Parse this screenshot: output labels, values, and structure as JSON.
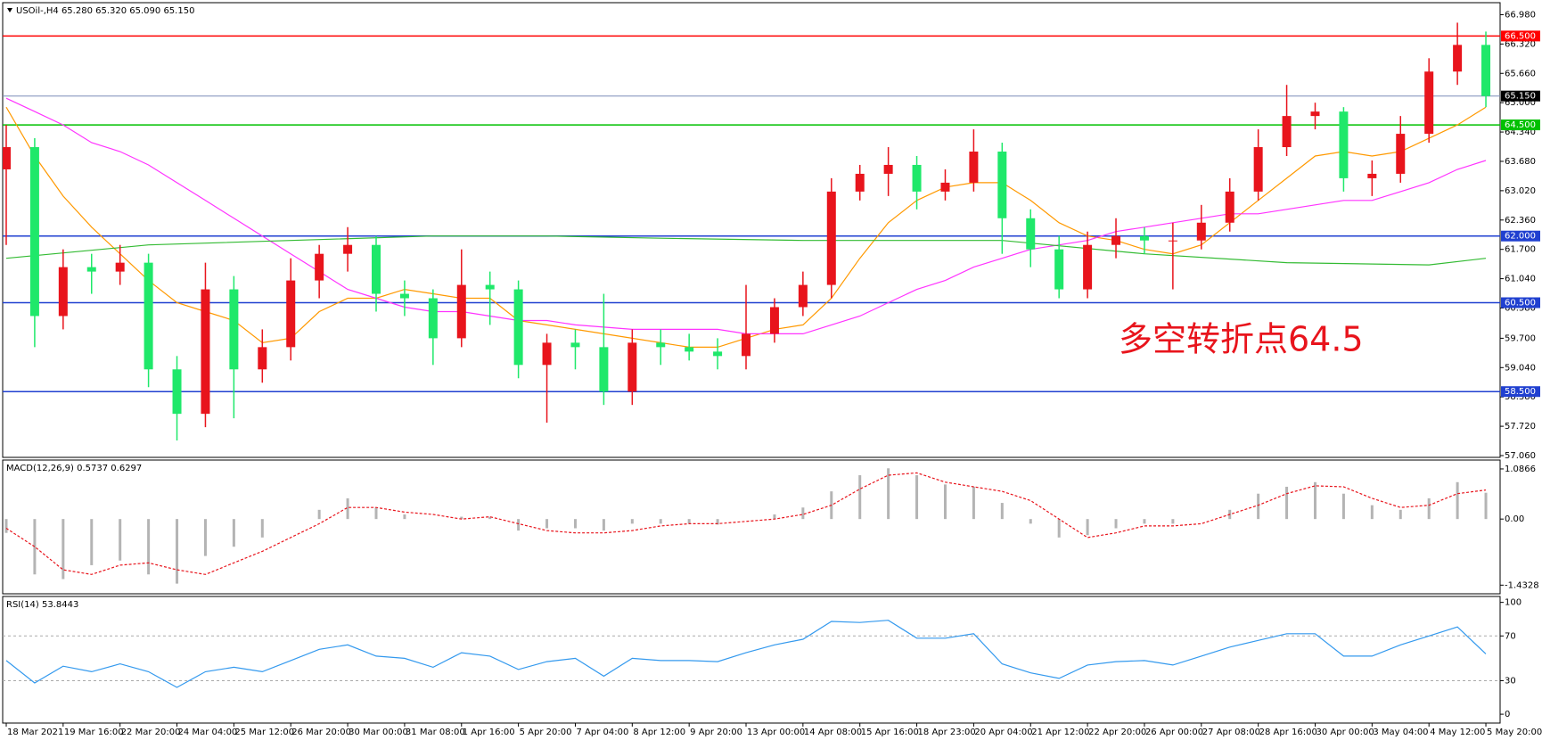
{
  "chart_data": [
    {
      "type": "candlestick",
      "title": "USOil-,H4  65.280 65.320 65.090 65.150",
      "annotation": "多空转折点64.5",
      "up_color": "#e8141c",
      "down_color": "#1fe86a",
      "xlim": [
        -0.5,
        210
      ],
      "x": [
        0,
        4,
        8,
        12,
        16,
        20,
        24,
        28,
        32,
        36,
        40,
        44,
        48,
        52,
        56,
        60,
        64,
        68,
        72,
        76,
        80,
        84,
        88,
        92,
        96,
        100,
        104,
        108,
        112,
        116,
        120,
        124,
        128,
        132,
        136,
        140,
        144,
        148,
        152,
        156,
        160,
        164,
        168,
        172,
        176,
        180,
        184,
        188,
        192,
        196,
        200,
        204,
        208
      ],
      "open": [
        63.5,
        64.0,
        60.2,
        61.3,
        61.2,
        61.4,
        59.0,
        58.0,
        60.8,
        59.0,
        59.5,
        61.0,
        61.6,
        61.8,
        60.7,
        60.6,
        59.7,
        60.9,
        60.8,
        59.1,
        59.6,
        59.5,
        58.5,
        59.6,
        59.5,
        59.4,
        59.3,
        59.8,
        60.4,
        60.9,
        63.0,
        63.4,
        63.6,
        63.0,
        63.2,
        63.9,
        62.4,
        61.7,
        60.8,
        61.8,
        62.0,
        61.9,
        61.9,
        62.3,
        63.0,
        64.0,
        64.7,
        64.8,
        63.3,
        63.4,
        64.3,
        65.7,
        66.3
      ],
      "high": [
        64.5,
        64.2,
        61.7,
        61.6,
        61.8,
        61.6,
        59.3,
        61.4,
        61.1,
        59.9,
        61.5,
        61.8,
        62.2,
        62.0,
        61.0,
        60.8,
        61.7,
        61.2,
        61.0,
        59.8,
        59.9,
        60.7,
        59.9,
        59.9,
        59.8,
        59.7,
        60.9,
        60.6,
        61.2,
        63.3,
        63.6,
        64.0,
        63.8,
        63.5,
        64.4,
        64.1,
        62.6,
        62.0,
        62.1,
        62.4,
        62.2,
        62.3,
        62.7,
        63.3,
        64.4,
        65.4,
        65.0,
        64.9,
        63.7,
        64.7,
        66.0,
        66.8,
        66.6
      ],
      "low": [
        61.8,
        59.5,
        59.9,
        60.7,
        60.9,
        58.6,
        57.4,
        57.7,
        57.9,
        58.7,
        59.2,
        60.6,
        61.2,
        60.3,
        60.2,
        59.1,
        59.5,
        60.0,
        58.8,
        57.8,
        59.0,
        58.2,
        58.2,
        59.1,
        59.2,
        59.0,
        59.0,
        59.6,
        60.2,
        60.6,
        62.8,
        62.9,
        62.6,
        62.8,
        63.0,
        61.6,
        61.3,
        60.6,
        60.6,
        61.5,
        61.6,
        60.8,
        61.7,
        62.1,
        62.8,
        63.8,
        64.4,
        63.0,
        62.9,
        63.2,
        64.1,
        65.4,
        64.9
      ],
      "close": [
        64.0,
        60.2,
        61.3,
        61.2,
        61.4,
        59.0,
        58.0,
        60.8,
        59.0,
        59.5,
        61.0,
        61.6,
        61.8,
        60.7,
        60.6,
        59.7,
        60.9,
        60.8,
        59.1,
        59.6,
        59.5,
        58.5,
        59.6,
        59.5,
        59.4,
        59.3,
        59.8,
        60.4,
        60.9,
        63.0,
        63.4,
        63.6,
        63.0,
        63.2,
        63.9,
        62.4,
        61.7,
        60.8,
        61.8,
        62.0,
        61.9,
        61.9,
        62.3,
        63.0,
        64.0,
        64.7,
        64.8,
        63.3,
        63.4,
        64.3,
        65.7,
        66.3,
        65.15
      ],
      "series": [
        {
          "color": "#ff9900",
          "x": [
            0,
            4,
            8,
            12,
            16,
            20,
            24,
            28,
            32,
            36,
            40,
            44,
            48,
            52,
            56,
            60,
            64,
            68,
            72,
            76,
            80,
            84,
            88,
            92,
            96,
            100,
            104,
            108,
            112,
            116,
            120,
            124,
            128,
            132,
            136,
            140,
            144,
            148,
            152,
            156,
            160,
            164,
            168,
            172,
            176,
            180,
            184,
            188,
            192,
            196,
            200,
            204,
            208
          ],
          "values": [
            64.9,
            63.8,
            62.9,
            62.2,
            61.6,
            61.0,
            60.5,
            60.3,
            60.1,
            59.6,
            59.7,
            60.3,
            60.6,
            60.6,
            60.8,
            60.7,
            60.6,
            60.6,
            60.1,
            60.0,
            59.9,
            59.8,
            59.7,
            59.6,
            59.5,
            59.5,
            59.7,
            59.9,
            60.0,
            60.6,
            61.5,
            62.3,
            62.8,
            63.1,
            63.2,
            63.2,
            62.8,
            62.3,
            62.0,
            61.9,
            61.7,
            61.6,
            61.8,
            62.3,
            62.8,
            63.3,
            63.8,
            63.9,
            63.8,
            63.9,
            64.2,
            64.5,
            64.9
          ]
        },
        {
          "color": "#ff33ff",
          "x": [
            0,
            4,
            8,
            12,
            16,
            20,
            24,
            28,
            32,
            36,
            40,
            44,
            48,
            52,
            56,
            60,
            64,
            68,
            72,
            76,
            80,
            84,
            88,
            92,
            96,
            100,
            104,
            108,
            112,
            116,
            120,
            124,
            128,
            132,
            136,
            140,
            144,
            148,
            152,
            156,
            160,
            164,
            168,
            172,
            176,
            180,
            184,
            188,
            192,
            196,
            200,
            204,
            208
          ],
          "values": [
            65.1,
            64.8,
            64.5,
            64.1,
            63.9,
            63.6,
            63.2,
            62.8,
            62.4,
            62.0,
            61.6,
            61.2,
            60.8,
            60.6,
            60.4,
            60.3,
            60.3,
            60.2,
            60.1,
            60.1,
            60.0,
            59.95,
            59.9,
            59.9,
            59.9,
            59.9,
            59.8,
            59.8,
            59.8,
            60.0,
            60.2,
            60.5,
            60.8,
            61.0,
            61.3,
            61.5,
            61.7,
            61.8,
            61.9,
            62.1,
            62.2,
            62.3,
            62.4,
            62.5,
            62.5,
            62.6,
            62.7,
            62.8,
            62.8,
            63.0,
            63.2,
            63.5,
            63.7
          ]
        },
        {
          "color": "#33bb33",
          "x": [
            0,
            20,
            40,
            60,
            76,
            92,
            112,
            140,
            160,
            180,
            200,
            208
          ],
          "values": [
            61.5,
            61.8,
            61.9,
            62.0,
            62.0,
            61.95,
            61.9,
            61.9,
            61.6,
            61.4,
            61.35,
            61.5
          ]
        }
      ],
      "levels": [
        {
          "value": 66.5,
          "label": "66.500",
          "color": "#ff0000"
        },
        {
          "value": 65.15,
          "label": "65.150",
          "color": "#7a8cb8"
        },
        {
          "value": 64.5,
          "label": "64.500",
          "color": "#00c000"
        },
        {
          "value": 62.0,
          "label": "62.000",
          "color": "#2040d0"
        },
        {
          "value": 60.5,
          "label": "60.500",
          "color": "#2040d0"
        },
        {
          "value": 58.5,
          "label": "58.500",
          "color": "#2040d0"
        }
      ],
      "ylim": [
        57.02,
        67.25
      ],
      "yticks": [
        {
          "value": 66.98,
          "label": "66.980"
        },
        {
          "value": 66.32,
          "label": "66.320"
        },
        {
          "value": 65.66,
          "label": "65.660"
        },
        {
          "value": 65.0,
          "label": "65.000"
        },
        {
          "value": 64.34,
          "label": "64.340"
        },
        {
          "value": 63.68,
          "label": "63.680"
        },
        {
          "value": 63.02,
          "label": "63.020"
        },
        {
          "value": 62.36,
          "label": "62.360"
        },
        {
          "value": 61.7,
          "label": "61.700"
        },
        {
          "value": 61.04,
          "label": "61.040"
        },
        {
          "value": 60.38,
          "label": "60.380"
        },
        {
          "value": 59.7,
          "label": "59.700"
        },
        {
          "value": 59.04,
          "label": "59.040"
        },
        {
          "value": 58.38,
          "label": "58.380"
        },
        {
          "value": 57.72,
          "label": "57.720"
        },
        {
          "value": 57.06,
          "label": "57.060"
        }
      ],
      "xticks": [
        {
          "value": 0,
          "label": "18 Mar 2021"
        },
        {
          "value": 8,
          "label": "19 Mar 16:00"
        },
        {
          "value": 16,
          "label": "22 Mar 20:00"
        },
        {
          "value": 24,
          "label": "24 Mar 04:00"
        },
        {
          "value": 32,
          "label": "25 Mar 12:00"
        },
        {
          "value": 40,
          "label": "26 Mar 20:00"
        },
        {
          "value": 48,
          "label": "30 Mar 00:00"
        },
        {
          "value": 56,
          "label": "31 Mar 08:00"
        },
        {
          "value": 64,
          "label": "1 Apr 16:00"
        },
        {
          "value": 72,
          "label": "5 Apr 20:00"
        },
        {
          "value": 80,
          "label": "7 Apr 04:00"
        },
        {
          "value": 88,
          "label": "8 Apr 12:00"
        },
        {
          "value": 96,
          "label": "9 Apr 20:00"
        },
        {
          "value": 104,
          "label": "13 Apr 00:00"
        },
        {
          "value": 112,
          "label": "14 Apr 08:00"
        },
        {
          "value": 120,
          "label": "15 Apr 16:00"
        },
        {
          "value": 128,
          "label": "18 Apr 23:00"
        },
        {
          "value": 136,
          "label": "20 Apr 04:00"
        },
        {
          "value": 144,
          "label": "21 Apr 12:00"
        },
        {
          "value": 152,
          "label": "22 Apr 20:00"
        },
        {
          "value": 160,
          "label": "26 Apr 00:00"
        },
        {
          "value": 168,
          "label": "27 Apr 08:00"
        },
        {
          "value": 176,
          "label": "28 Apr 16:00"
        },
        {
          "value": 184,
          "label": "30 Apr 00:00"
        },
        {
          "value": 192,
          "label": "3 May 04:00"
        },
        {
          "value": 200,
          "label": "4 May 12:00"
        },
        {
          "value": 208,
          "label": "5 May 20:00"
        }
      ]
    },
    {
      "type": "macd",
      "title": "MACD(12,26,9) 0.5737 0.6297",
      "histogram_color": "#b4b4b4",
      "signal_color": "#e8141c",
      "xlim": [
        -0.5,
        210
      ],
      "x": [
        0,
        4,
        8,
        12,
        16,
        20,
        24,
        28,
        32,
        36,
        40,
        44,
        48,
        52,
        56,
        60,
        64,
        68,
        72,
        76,
        80,
        84,
        88,
        92,
        96,
        100,
        104,
        108,
        112,
        116,
        120,
        124,
        128,
        132,
        136,
        140,
        144,
        148,
        152,
        156,
        160,
        164,
        168,
        172,
        176,
        180,
        184,
        188,
        192,
        196,
        200,
        204,
        208
      ],
      "histogram": [
        -0.3,
        -1.2,
        -1.3,
        -1.0,
        -0.9,
        -1.2,
        -1.4,
        -0.8,
        -0.6,
        -0.4,
        0.0,
        0.2,
        0.45,
        0.25,
        0.1,
        0.0,
        0.05,
        0.05,
        -0.25,
        -0.2,
        -0.2,
        -0.25,
        -0.1,
        -0.1,
        -0.1,
        -0.12,
        0.0,
        0.1,
        0.25,
        0.6,
        0.95,
        1.1,
        0.95,
        0.75,
        0.7,
        0.35,
        -0.1,
        -0.4,
        -0.35,
        -0.2,
        -0.1,
        -0.1,
        0.0,
        0.2,
        0.55,
        0.7,
        0.8,
        0.55,
        0.3,
        0.2,
        0.45,
        0.8,
        0.57
      ],
      "signal": [
        -0.2,
        -0.6,
        -1.1,
        -1.2,
        -1.0,
        -0.95,
        -1.1,
        -1.2,
        -0.95,
        -0.7,
        -0.4,
        -0.1,
        0.25,
        0.25,
        0.15,
        0.1,
        0.0,
        0.05,
        -0.1,
        -0.25,
        -0.3,
        -0.3,
        -0.25,
        -0.15,
        -0.1,
        -0.1,
        -0.05,
        0.0,
        0.1,
        0.3,
        0.65,
        0.95,
        1.0,
        0.8,
        0.7,
        0.6,
        0.4,
        0.0,
        -0.4,
        -0.3,
        -0.15,
        -0.15,
        -0.1,
        0.1,
        0.3,
        0.55,
        0.72,
        0.7,
        0.45,
        0.25,
        0.3,
        0.55,
        0.63
      ],
      "ylim": [
        -1.62,
        1.279
      ],
      "yticks": [
        1.0866,
        {
          "value": 0,
          "label": "0.00"
        },
        -1.4328
      ]
    },
    {
      "type": "line",
      "title": "RSI(14) 53.8443",
      "color": "#3399ee",
      "xlim": [
        -0.5,
        210
      ],
      "x": [
        0,
        4,
        8,
        12,
        16,
        20,
        24,
        28,
        32,
        36,
        40,
        44,
        48,
        52,
        56,
        60,
        64,
        68,
        72,
        76,
        80,
        84,
        88,
        92,
        96,
        100,
        104,
        108,
        112,
        116,
        120,
        124,
        128,
        132,
        136,
        140,
        144,
        148,
        152,
        156,
        160,
        164,
        168,
        172,
        176,
        180,
        184,
        188,
        192,
        196,
        200,
        204,
        208
      ],
      "values": [
        48,
        28,
        43,
        38,
        45,
        38,
        24,
        38,
        42,
        38,
        48,
        58,
        62,
        52,
        50,
        42,
        55,
        52,
        40,
        47,
        50,
        34,
        50,
        48,
        48,
        47,
        55,
        62,
        67,
        83,
        82,
        84,
        68,
        68,
        72,
        45,
        37,
        32,
        44,
        47,
        48,
        44,
        52,
        60,
        66,
        72,
        72,
        52,
        52,
        62,
        70,
        78,
        54
      ],
      "levels": [
        70,
        30
      ],
      "ylim": [
        -7.9,
        105.3
      ],
      "yticks": [
        100,
        70,
        30,
        0
      ]
    }
  ]
}
